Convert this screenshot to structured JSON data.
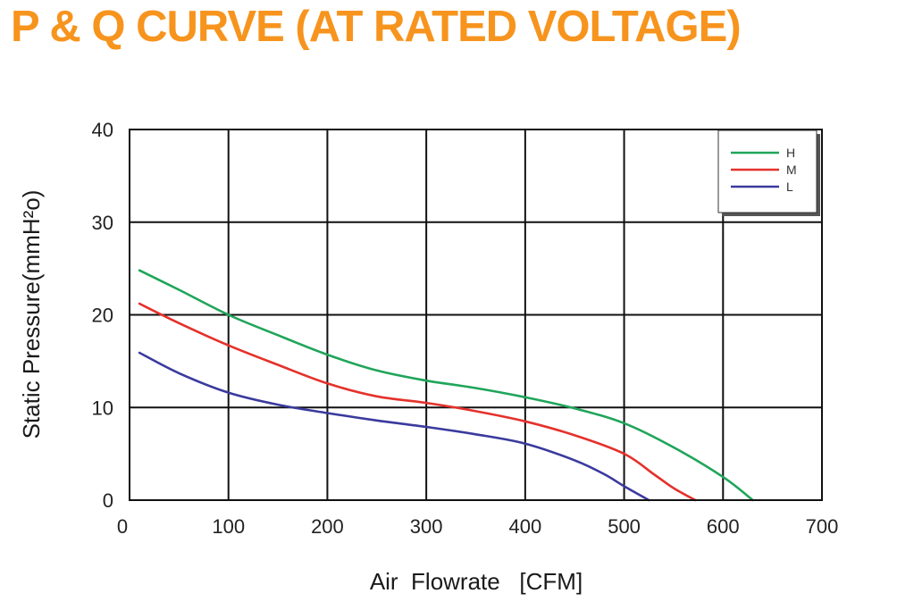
{
  "title": "P & Q CURVE (AT RATED VOLTAGE)",
  "colors": {
    "title": "#F7941D",
    "H": "#1FA55A",
    "M": "#E5312B",
    "L": "#3A3A9E",
    "grid": "#111111"
  },
  "chart_data": {
    "type": "line",
    "title": "P & Q CURVE (AT RATED VOLTAGE)",
    "xlabel": "Air  Flowrate   [CFM]",
    "ylabel": "Static Pressure(mmH²o)",
    "xlim": [
      0,
      700
    ],
    "ylim": [
      0,
      40
    ],
    "xticks": [
      0,
      100,
      200,
      300,
      400,
      500,
      600,
      700
    ],
    "yticks": [
      0,
      10,
      20,
      30,
      40
    ],
    "grid": true,
    "legend_position": "top-right",
    "series": [
      {
        "name": "H",
        "x": [
          10,
          50,
          100,
          150,
          200,
          250,
          300,
          350,
          400,
          450,
          500,
          550,
          600,
          630
        ],
        "y": [
          24.8,
          22.7,
          20.0,
          17.8,
          15.7,
          14.0,
          12.9,
          12.1,
          11.1,
          9.9,
          8.3,
          5.7,
          2.5,
          0
        ]
      },
      {
        "name": "M",
        "x": [
          10,
          50,
          100,
          150,
          200,
          250,
          300,
          350,
          400,
          450,
          500,
          530,
          550,
          572
        ],
        "y": [
          21.2,
          19.1,
          16.7,
          14.6,
          12.6,
          11.2,
          10.5,
          9.6,
          8.5,
          7.0,
          5.0,
          2.8,
          1.3,
          0
        ]
      },
      {
        "name": "L",
        "x": [
          10,
          50,
          100,
          150,
          200,
          250,
          300,
          350,
          400,
          450,
          480,
          500,
          525
        ],
        "y": [
          15.9,
          13.7,
          11.6,
          10.3,
          9.4,
          8.6,
          7.9,
          7.1,
          6.1,
          4.3,
          2.8,
          1.5,
          0
        ]
      }
    ]
  }
}
